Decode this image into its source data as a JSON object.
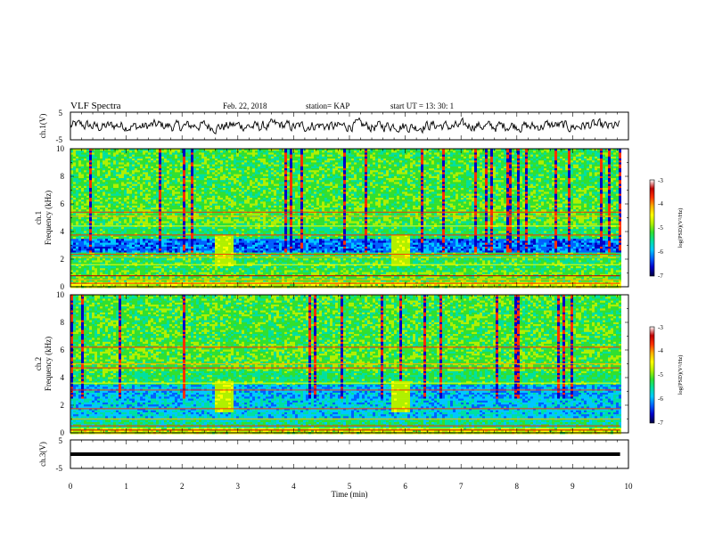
{
  "chart_data": {
    "type": "heatmap",
    "title": "VLF Spectra",
    "date": "Feb. 22, 2018",
    "station": "station= KAP",
    "start": "start UT =  13: 30: 1",
    "xlabel": "Time (min)",
    "xlim": [
      0,
      10
    ],
    "xticks": [
      "0",
      "1",
      "2",
      "3",
      "4",
      "5",
      "6",
      "7",
      "8",
      "9",
      "10"
    ],
    "panels": [
      {
        "id": "waveform-ch1",
        "kind": "line",
        "ylabel": "ch.1(V)",
        "ylim": [
          -5,
          5
        ],
        "yticks": [
          "5",
          "-5"
        ],
        "data_end_min": 9.85
      },
      {
        "id": "spectrogram-ch1",
        "kind": "spectrogram",
        "ylabel_top": "ch.1",
        "ylabel": "Frequency (kHz)",
        "ylim": [
          0,
          10
        ],
        "yticks": [
          "0",
          "2",
          "4",
          "6",
          "8",
          "10"
        ],
        "data_end_min": 9.85,
        "colorbar": {
          "label": "log(PSD)(V²/Hz)",
          "range": [
            -7,
            -3
          ],
          "ticks": [
            "-3",
            "-4",
            "-5",
            "-6",
            "-7"
          ]
        }
      },
      {
        "id": "spectrogram-ch2",
        "kind": "spectrogram",
        "ylabel_top": "ch.2",
        "ylabel": "Frequency (kHz)",
        "ylim": [
          0,
          10
        ],
        "yticks": [
          "0",
          "2",
          "4",
          "6",
          "8",
          "10"
        ],
        "data_end_min": 9.85,
        "colorbar": {
          "label": "log(PSD)(V²/Hz)",
          "range": [
            -7,
            -3
          ],
          "ticks": [
            "-3",
            "-4",
            "-5",
            "-6",
            "-7"
          ]
        }
      },
      {
        "id": "waveform-ch3",
        "kind": "line",
        "ylabel": "ch.3(V)",
        "ylim": [
          -5,
          5
        ],
        "yticks": [
          "5",
          "-5"
        ],
        "constant_value": 0,
        "data_end_min": 9.85
      }
    ],
    "grid": false,
    "colormap": [
      "#000040",
      "#0000c8",
      "#0060ff",
      "#00c8ff",
      "#00e0a0",
      "#30e030",
      "#b0f000",
      "#ffff00",
      "#ffb000",
      "#ff3000",
      "#c00000",
      "#ffffff"
    ]
  }
}
